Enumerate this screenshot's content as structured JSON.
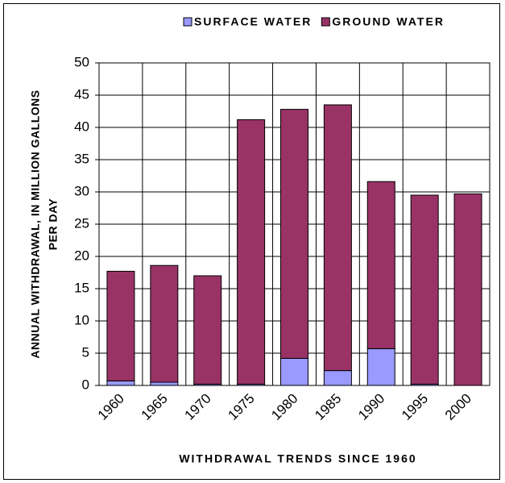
{
  "chart_data": {
    "type": "stacked_bar",
    "x_label": "WITHDRAWAL TRENDS SINCE 1960",
    "y_label": [
      "ANNUAL WITHDRAWAL, IN MILLION GALLONS",
      "PER DAY"
    ],
    "categories": [
      "1960",
      "1965",
      "1970",
      "1975",
      "1980",
      "1985",
      "1990",
      "1995",
      "2000"
    ],
    "series": [
      {
        "name": "SURFACE WATER",
        "color": "#9999ff",
        "values": [
          0.7,
          0.5,
          0.2,
          0.2,
          4.2,
          2.3,
          5.7,
          0.2,
          0
        ]
      },
      {
        "name": "GROUND WATER",
        "color": "#993366",
        "values": [
          17.0,
          18.1,
          16.8,
          41.0,
          38.6,
          41.2,
          25.9,
          29.3,
          29.7
        ]
      }
    ],
    "ylim": [
      0,
      50
    ],
    "yticks": [
      0,
      5,
      10,
      15,
      20,
      25,
      30,
      35,
      40,
      45,
      50
    ],
    "grid": true,
    "legend": "top"
  }
}
